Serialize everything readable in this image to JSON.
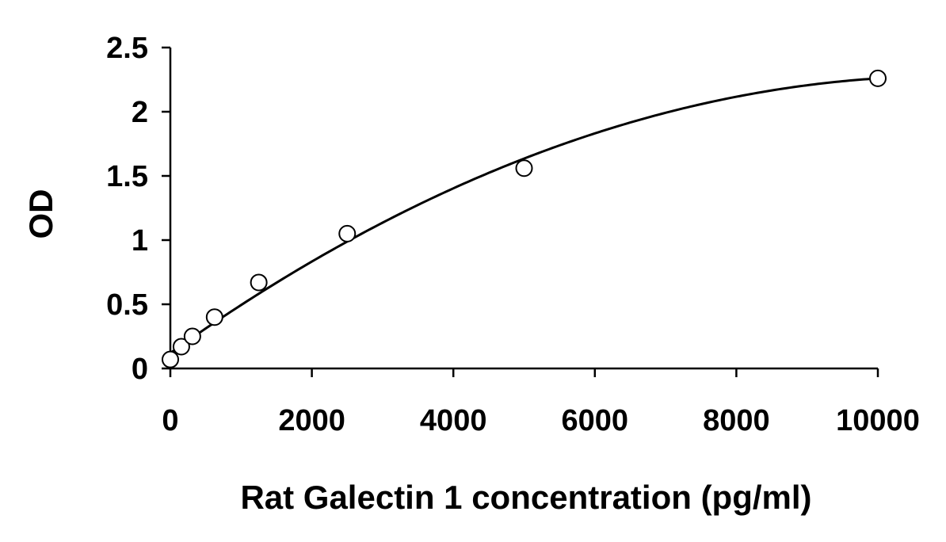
{
  "chart_data": {
    "type": "scatter",
    "title": "",
    "xlabel": "Rat Galectin 1 concentration (pg/ml)",
    "ylabel": "OD",
    "xlim": [
      0,
      10000
    ],
    "ylim": [
      0,
      2.5
    ],
    "x_ticks": [
      0,
      2000,
      4000,
      6000,
      8000,
      10000
    ],
    "x_tick_labels": [
      "0",
      "2000",
      "4000",
      "6000",
      "8000",
      "10000"
    ],
    "y_ticks": [
      0,
      0.5,
      1,
      1.5,
      2,
      2.5
    ],
    "y_tick_labels": [
      "0",
      "0.5",
      "1",
      "1.5",
      "2",
      "2.5"
    ],
    "grid": false,
    "legend": "none",
    "series": [
      {
        "marker": "open-circle",
        "x": [
          0,
          156,
          312,
          625,
          1250,
          2500,
          5000,
          10000
        ],
        "y": [
          0.07,
          0.17,
          0.25,
          0.4,
          0.67,
          1.05,
          1.56,
          2.26
        ]
      }
    ],
    "fit_curve": {
      "type": "quadratic",
      "coefficients": [
        0.12,
        0.000392,
        -1.78e-08
      ]
    },
    "colors": {
      "axis": "#000000",
      "marker_stroke": "#000000",
      "marker_fill": "#ffffff",
      "curve": "#000000"
    }
  }
}
